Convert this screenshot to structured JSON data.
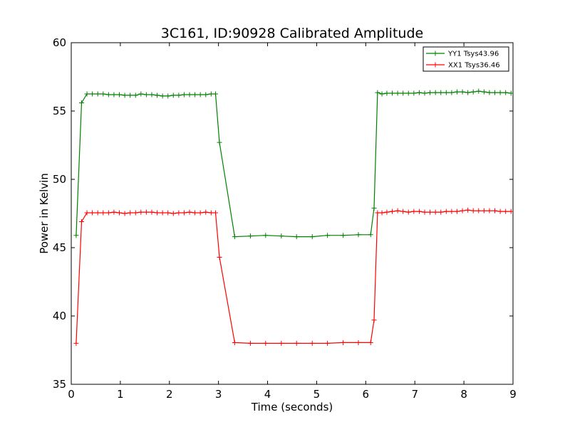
{
  "chart_data": {
    "type": "line",
    "title": "3C161, ID:90928 Calibrated Amplitude",
    "xlabel": "Time (seconds)",
    "ylabel": "Power in Kelvin",
    "xlim": [
      0,
      9
    ],
    "ylim": [
      35,
      60
    ],
    "xticks": [
      0,
      1,
      2,
      3,
      4,
      5,
      6,
      7,
      8,
      9
    ],
    "yticks": [
      35,
      40,
      45,
      50,
      55,
      60
    ],
    "grid": false,
    "legend_position": "top-right",
    "series": [
      {
        "name": "YY1 Tsys43.96",
        "color": "#008000",
        "marker": "+",
        "x": [
          0.1,
          0.21,
          0.32,
          0.43,
          0.54,
          0.65,
          0.76,
          0.87,
          0.98,
          1.09,
          1.2,
          1.31,
          1.42,
          1.53,
          1.64,
          1.75,
          1.86,
          1.97,
          2.08,
          2.19,
          2.3,
          2.41,
          2.52,
          2.63,
          2.74,
          2.85,
          2.94,
          3.02,
          3.33,
          3.65,
          3.96,
          4.28,
          4.59,
          4.91,
          5.22,
          5.54,
          5.85,
          6.1,
          6.17,
          6.24,
          6.33,
          6.43,
          6.54,
          6.65,
          6.76,
          6.87,
          6.98,
          7.09,
          7.2,
          7.31,
          7.42,
          7.53,
          7.64,
          7.75,
          7.86,
          7.97,
          8.08,
          8.19,
          8.3,
          8.41,
          8.52,
          8.63,
          8.74,
          8.85,
          8.96
        ],
        "y": [
          45.9,
          55.6,
          56.25,
          56.25,
          56.25,
          56.25,
          56.2,
          56.2,
          56.2,
          56.15,
          56.15,
          56.15,
          56.25,
          56.2,
          56.2,
          56.15,
          56.1,
          56.1,
          56.15,
          56.15,
          56.2,
          56.2,
          56.2,
          56.2,
          56.2,
          56.25,
          56.25,
          52.7,
          45.8,
          45.85,
          45.9,
          45.85,
          45.8,
          45.8,
          45.9,
          45.9,
          45.95,
          45.95,
          47.9,
          56.35,
          56.25,
          56.3,
          56.3,
          56.3,
          56.3,
          56.3,
          56.3,
          56.35,
          56.3,
          56.35,
          56.35,
          56.35,
          56.35,
          56.35,
          56.4,
          56.4,
          56.35,
          56.4,
          56.45,
          56.4,
          56.35,
          56.35,
          56.35,
          56.35,
          56.3
        ]
      },
      {
        "name": "XX1 Tsys36.46",
        "color": "#ff0000",
        "marker": "+",
        "x": [
          0.1,
          0.21,
          0.32,
          0.43,
          0.54,
          0.65,
          0.76,
          0.87,
          0.98,
          1.09,
          1.2,
          1.31,
          1.42,
          1.53,
          1.64,
          1.75,
          1.86,
          1.97,
          2.08,
          2.19,
          2.3,
          2.41,
          2.52,
          2.63,
          2.74,
          2.85,
          2.94,
          3.02,
          3.33,
          3.65,
          3.96,
          4.28,
          4.59,
          4.91,
          5.22,
          5.54,
          5.85,
          6.1,
          6.17,
          6.24,
          6.33,
          6.43,
          6.54,
          6.65,
          6.76,
          6.87,
          6.98,
          7.09,
          7.2,
          7.31,
          7.42,
          7.53,
          7.64,
          7.75,
          7.86,
          7.97,
          8.08,
          8.19,
          8.3,
          8.41,
          8.52,
          8.63,
          8.74,
          8.85,
          8.96
        ],
        "y": [
          38.0,
          46.9,
          47.55,
          47.55,
          47.55,
          47.55,
          47.55,
          47.6,
          47.55,
          47.5,
          47.55,
          47.55,
          47.6,
          47.6,
          47.6,
          47.55,
          47.55,
          47.55,
          47.5,
          47.55,
          47.55,
          47.6,
          47.55,
          47.55,
          47.6,
          47.55,
          47.55,
          44.3,
          38.05,
          38.0,
          38.0,
          38.0,
          38.0,
          38.0,
          38.0,
          38.05,
          38.05,
          38.05,
          39.7,
          47.55,
          47.55,
          47.6,
          47.65,
          47.7,
          47.65,
          47.6,
          47.65,
          47.65,
          47.6,
          47.6,
          47.6,
          47.6,
          47.65,
          47.65,
          47.65,
          47.7,
          47.75,
          47.7,
          47.7,
          47.7,
          47.7,
          47.7,
          47.65,
          47.65,
          47.65
        ]
      }
    ]
  }
}
